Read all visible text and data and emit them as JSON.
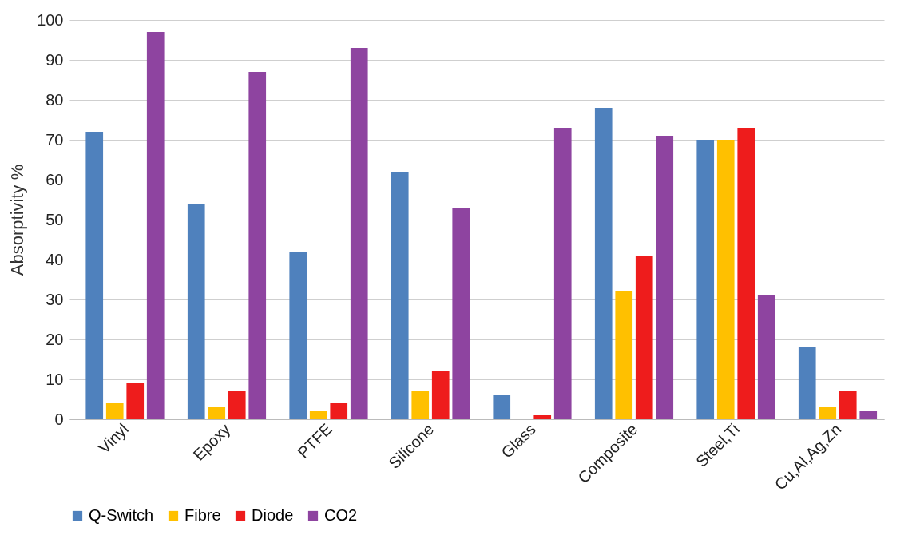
{
  "chart_data": {
    "type": "bar",
    "ylabel": "Absorptivity %",
    "categories": [
      "Vinyl",
      "Epoxy",
      "PTFE",
      "Silicone",
      "Glass",
      "Composite",
      "Steel,Ti",
      "Cu,Al,Ag,Zn"
    ],
    "series": [
      {
        "name": "Q-Switch",
        "color": "#4f81bd",
        "values": [
          72,
          54,
          42,
          62,
          6,
          78,
          70,
          18
        ]
      },
      {
        "name": "Fibre",
        "color": "#ffc000",
        "values": [
          4,
          3,
          2,
          7,
          0,
          32,
          70,
          3
        ]
      },
      {
        "name": "Diode",
        "color": "#ee1c1c",
        "values": [
          9,
          7,
          4,
          12,
          1,
          41,
          73,
          7
        ]
      },
      {
        "name": "CO2",
        "color": "#8e44a0",
        "values": [
          97,
          87,
          93,
          53,
          73,
          71,
          31,
          2
        ]
      }
    ],
    "ylim": [
      0,
      100
    ],
    "yticks": [
      0,
      10,
      20,
      30,
      40,
      50,
      60,
      70,
      80,
      90,
      100
    ],
    "grid": "y",
    "legend": "bottom"
  }
}
